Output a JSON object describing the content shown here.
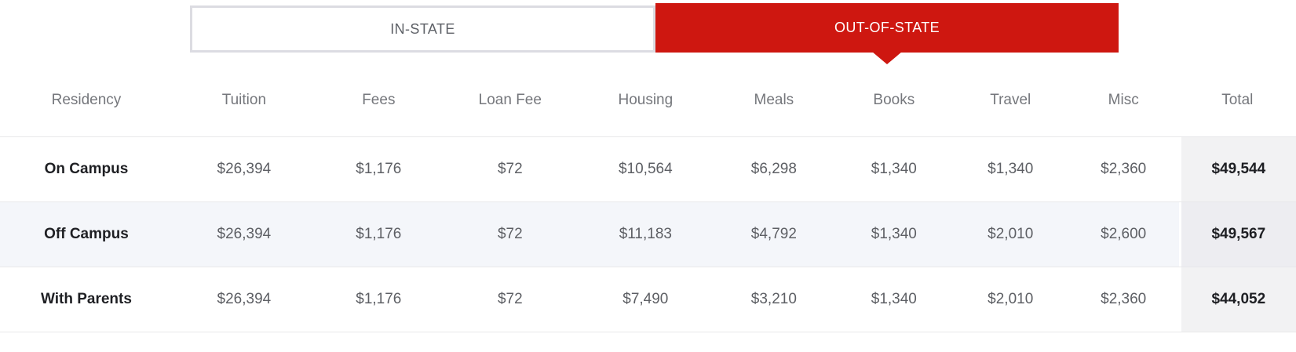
{
  "tabs": {
    "in_state_label": "IN-STATE",
    "out_of_state_label": "OUT-OF-STATE",
    "active_tab": "OUT-OF-STATE"
  },
  "colors": {
    "active_tab_red": "#ce1710",
    "inactive_tab_border": "#dcdce2",
    "header_text": "#75777c",
    "value_text": "#5d5f64",
    "label_text": "#1e1f23",
    "row_alt_bg": "#f4f6fa",
    "total_col_bg": "#f2f2f3",
    "total_col_alt_bg": "#ededf1",
    "divider": "#e8e8ea"
  },
  "table": {
    "headers": [
      "Residency",
      "Tuition",
      "Fees",
      "Loan Fee",
      "Housing",
      "Meals",
      "Books",
      "Travel",
      "Misc",
      "Total"
    ],
    "rows": [
      {
        "residency": "On Campus",
        "tuition": "$26,394",
        "fees": "$1,176",
        "loan_fee": "$72",
        "housing": "$10,564",
        "meals": "$6,298",
        "books": "$1,340",
        "travel": "$1,340",
        "misc": "$2,360",
        "total": "$49,544"
      },
      {
        "residency": "Off Campus",
        "tuition": "$26,394",
        "fees": "$1,176",
        "loan_fee": "$72",
        "housing": "$11,183",
        "meals": "$4,792",
        "books": "$1,340",
        "travel": "$2,010",
        "misc": "$2,600",
        "total": "$49,567"
      },
      {
        "residency": "With Parents",
        "tuition": "$26,394",
        "fees": "$1,176",
        "loan_fee": "$72",
        "housing": "$7,490",
        "meals": "$3,210",
        "books": "$1,340",
        "travel": "$2,010",
        "misc": "$2,360",
        "total": "$44,052"
      }
    ]
  }
}
